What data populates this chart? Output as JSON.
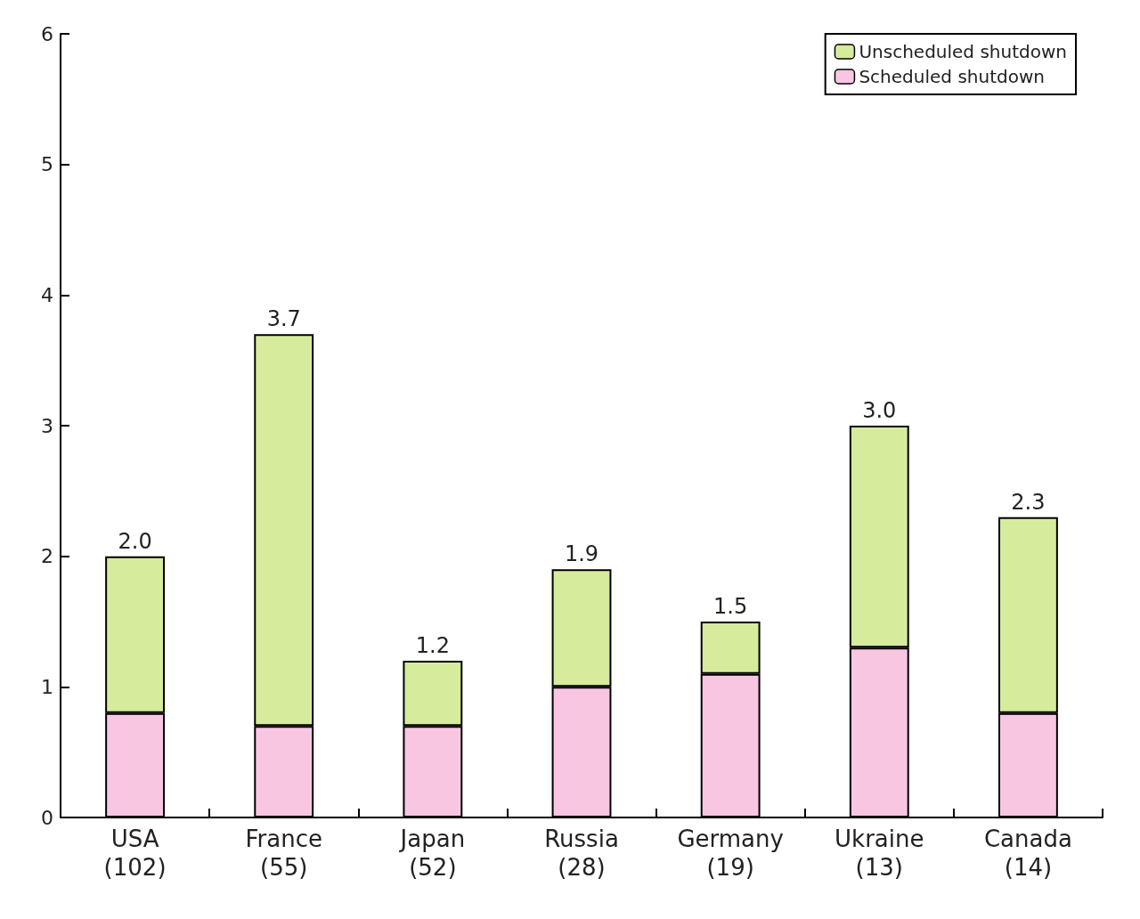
{
  "chart_data": {
    "type": "bar",
    "stacked": true,
    "categories": [
      "USA\n(102)",
      "France\n(55)",
      "Japan\n(52)",
      "Russia\n(28)",
      "Germany\n(19)",
      "Ukraine\n(13)",
      "Canada\n(14)"
    ],
    "series": [
      {
        "name": "Scheduled shutdown",
        "color": "#f9c6e2",
        "values": [
          0.8,
          0.7,
          0.7,
          1.0,
          1.1,
          1.3,
          0.8
        ]
      },
      {
        "name": "Unscheduled shutdown",
        "color": "#d6eb9c",
        "values": [
          1.2,
          3.0,
          0.5,
          0.9,
          0.4,
          1.7,
          1.5
        ]
      }
    ],
    "totals": [
      "2.0",
      "3.7",
      "1.2",
      "1.9",
      "1.5",
      "3.0",
      "2.3"
    ],
    "ylim": [
      0,
      6
    ],
    "yticks": [
      0,
      1,
      2,
      3,
      4,
      5,
      6
    ],
    "grid": false,
    "legend": "top right"
  }
}
